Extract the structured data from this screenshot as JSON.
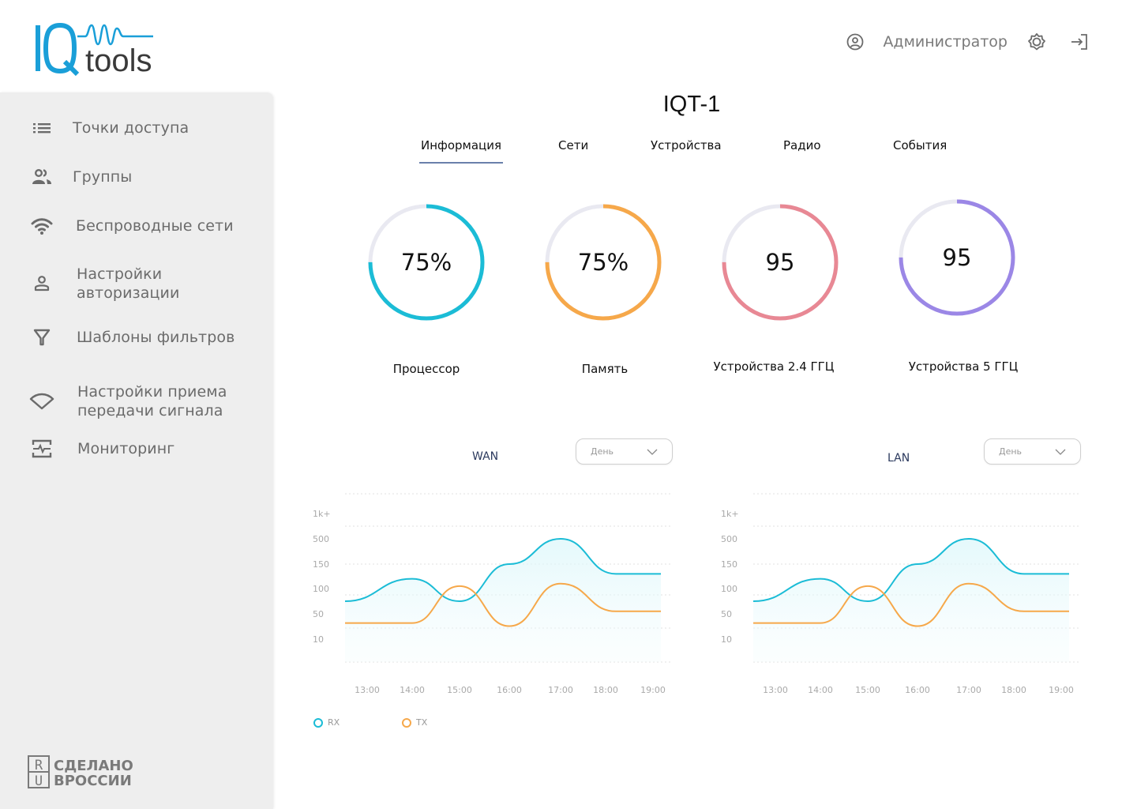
{
  "brand": {
    "name": "IQtools",
    "logo_prefix": "IQ",
    "logo_suffix": "tools",
    "accent": "#1a9fd8"
  },
  "user": {
    "name": "Администратор",
    "icons": [
      "user-circle-icon",
      "settings-icon",
      "logout-icon"
    ]
  },
  "sidebar": {
    "items": [
      {
        "label": "Точки доступа",
        "icon": "list-icon"
      },
      {
        "label": "Группы",
        "icon": "users-icon"
      },
      {
        "label": "Беспроводные сети",
        "icon": "wifi-icon"
      },
      {
        "label": "Настройки\nавторизации",
        "icon": "user-icon"
      },
      {
        "label": "Шаблоны фильтров",
        "icon": "filter-icon"
      },
      {
        "label": "Настройки приема\nпередачи сигнала",
        "icon": "signal-icon"
      },
      {
        "label": "Мониторинг",
        "icon": "monitoring-icon"
      }
    ],
    "footer": {
      "line1": "СДЕЛАНО",
      "line2": "ВРОССИИ",
      "badge_top": "R",
      "badge_bottom": "U"
    }
  },
  "page": {
    "title": "IQT-1"
  },
  "tabs": [
    {
      "label": "Информация",
      "active": true
    },
    {
      "label": "Сети",
      "active": false
    },
    {
      "label": "Устройства",
      "active": false
    },
    {
      "label": "Радио",
      "active": false
    },
    {
      "label": "События",
      "active": false
    }
  ],
  "gauges": [
    {
      "value_text": "75%",
      "fraction": 0.75,
      "label": "Процессор",
      "color": "#1bbcd6"
    },
    {
      "value_text": "75%",
      "fraction": 0.75,
      "label": "Память",
      "color": "#f6a84a"
    },
    {
      "value_text": "95",
      "fraction": 0.75,
      "label": "Устройства 2.4 ГГЦ",
      "color": "#e88894"
    },
    {
      "value_text": "95",
      "fraction": 0.75,
      "label": "Устройства 5 ГГЦ",
      "color": "#9b87e6"
    }
  ],
  "chart_data": [
    {
      "type": "line",
      "title": "WAN",
      "period_select": "День",
      "categories": [
        "13:00",
        "14:00",
        "15:00",
        "16:00",
        "17:00",
        "18:00",
        "19:00"
      ],
      "y_ticks": [
        "1k+",
        "500",
        "150",
        "100",
        "50",
        "10"
      ],
      "grid": true,
      "legend": "bottom-left",
      "series": [
        {
          "name": "RX",
          "color": "#1bbcd6",
          "values": [
            75,
            120,
            75,
            150,
            500,
            130,
            130
          ]
        },
        {
          "name": "TX",
          "color": "#f6a84a",
          "values": [
            35,
            35,
            105,
            30,
            110,
            55,
            55
          ]
        }
      ]
    },
    {
      "type": "line",
      "title": "LAN",
      "period_select": "День",
      "categories": [
        "13:00",
        "14:00",
        "15:00",
        "16:00",
        "17:00",
        "18:00",
        "19:00"
      ],
      "y_ticks": [
        "1k+",
        "500",
        "150",
        "100",
        "50",
        "10"
      ],
      "grid": true,
      "legend": "none",
      "series": [
        {
          "name": "RX",
          "color": "#1bbcd6",
          "values": [
            75,
            120,
            75,
            150,
            500,
            130,
            130
          ]
        },
        {
          "name": "TX",
          "color": "#f6a84a",
          "values": [
            35,
            35,
            105,
            30,
            110,
            55,
            55
          ]
        }
      ]
    }
  ],
  "legend": [
    {
      "name": "RX",
      "color": "#1bbcd6"
    },
    {
      "name": "TX",
      "color": "#f6a84a"
    }
  ]
}
